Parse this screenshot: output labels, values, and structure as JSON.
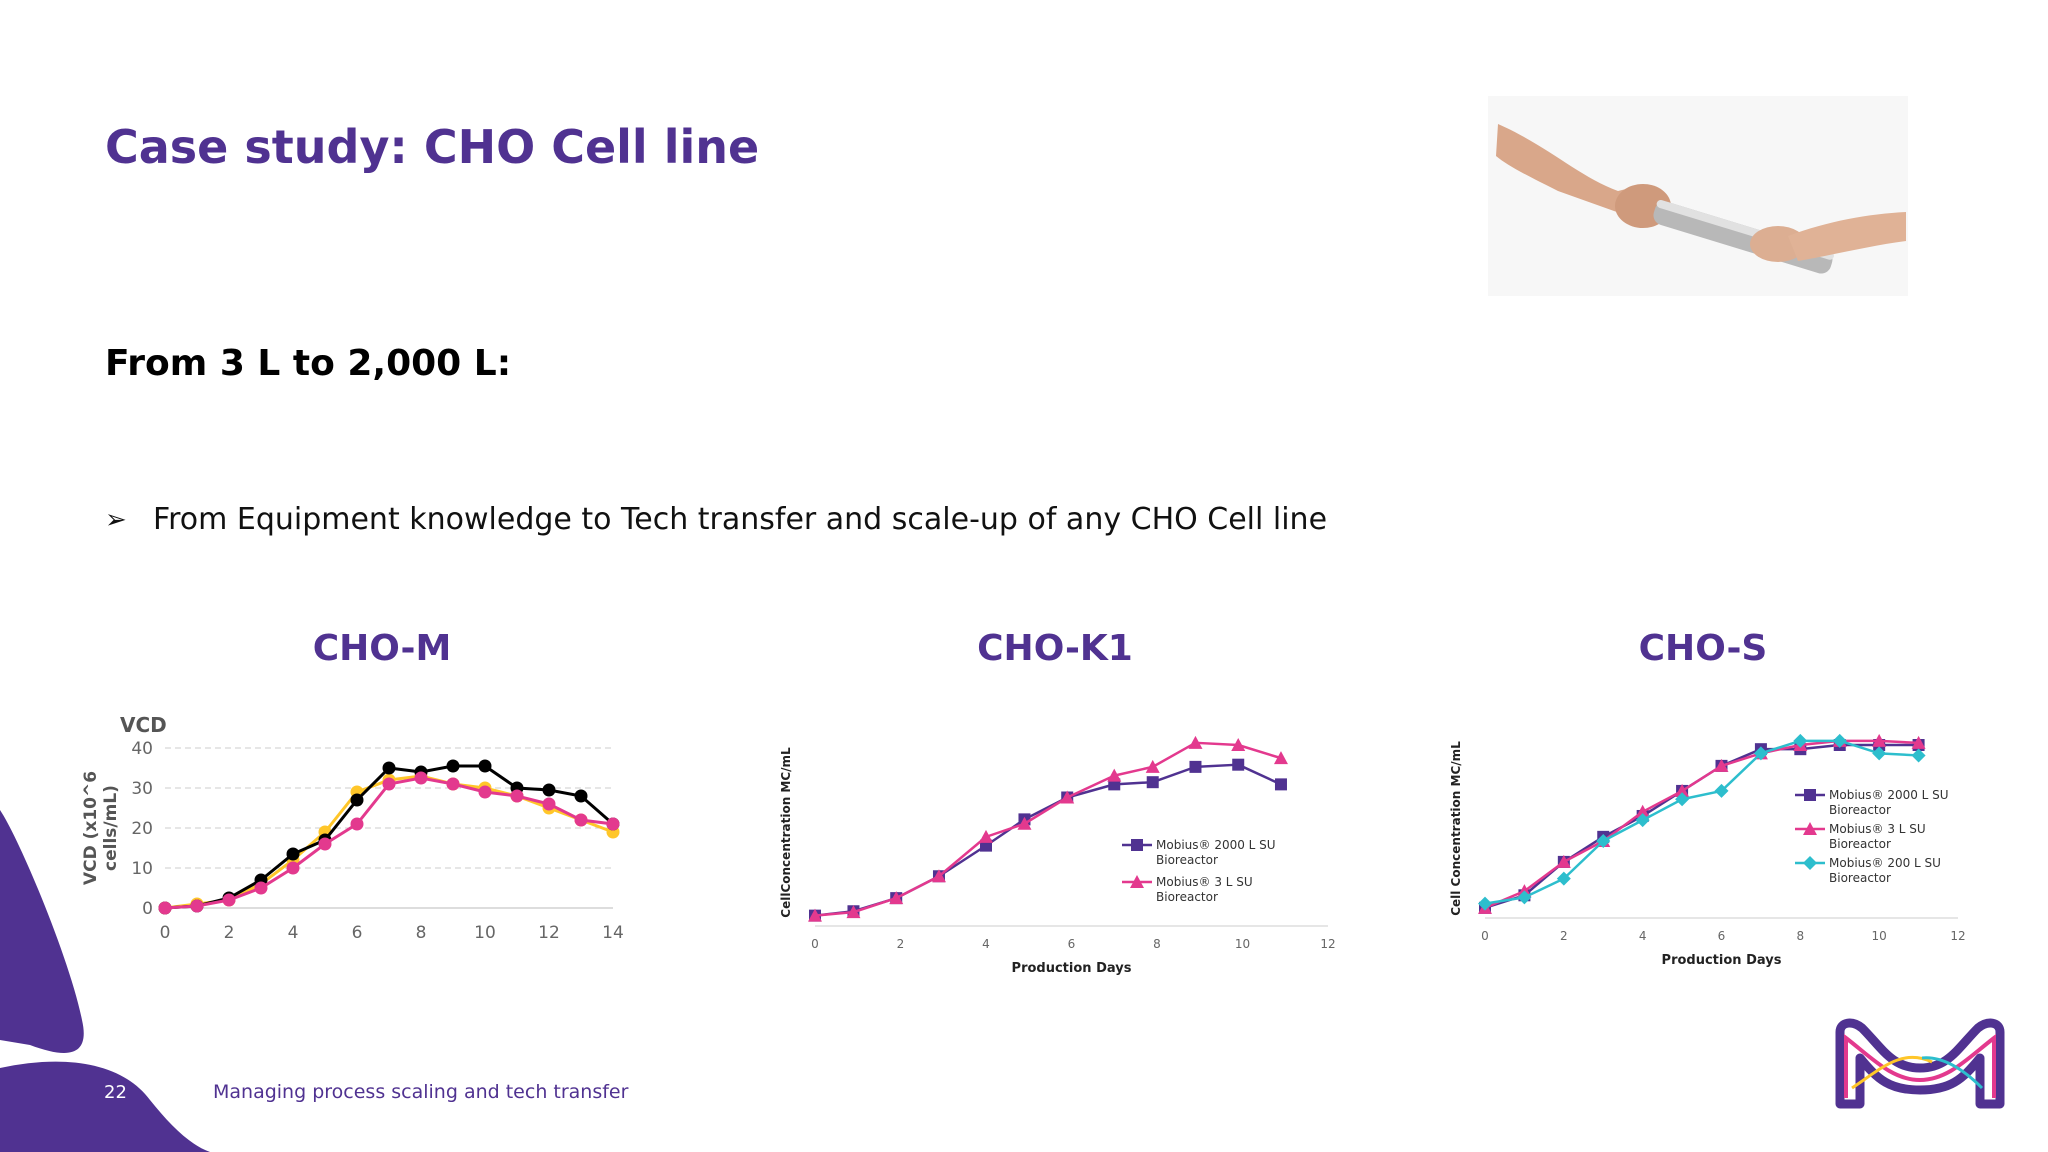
{
  "slide": {
    "title": "Case study: CHO Cell line",
    "subtitle": "From 3 L to 2,000 L:",
    "bullet_glyph": "➢",
    "bullet_text": "From Equipment knowledge to Tech transfer and scale-up of any CHO Cell line",
    "footer_page": "22",
    "footer_text": "Managing process scaling and tech transfer",
    "accent_color": "#503291",
    "icons": [
      "handshake-photo",
      "merck-logo-icon",
      "purple-blob-shape"
    ]
  },
  "chart_data": [
    {
      "type": "line",
      "title": "CHO-M",
      "plot_title": "VCD",
      "ylabel": "VCD (x10^6 cells/mL)",
      "xlabel": "",
      "xlim": [
        0,
        14
      ],
      "ylim": [
        0,
        40
      ],
      "xticks": [
        "0",
        "2",
        "4",
        "6",
        "8",
        "10",
        "12",
        "14"
      ],
      "yticks": [
        "0",
        "10",
        "20",
        "30",
        "40"
      ],
      "grid": "horizontal dashed",
      "legend": "none",
      "series": [
        {
          "color": "#FFC629",
          "x": [
            0,
            1,
            2,
            3,
            4,
            5,
            6,
            7,
            8,
            9,
            10,
            11,
            12,
            13,
            14
          ],
          "y": [
            0,
            1,
            2,
            6,
            12,
            19,
            29,
            32,
            33,
            31,
            30,
            28,
            25,
            22,
            19
          ]
        },
        {
          "color": "#000000",
          "x": [
            0,
            1,
            2,
            3,
            4,
            5,
            6,
            7,
            8,
            9,
            10,
            11,
            12,
            13,
            14
          ],
          "y": [
            0,
            0.5,
            2.5,
            7,
            13.5,
            17,
            27,
            35,
            34,
            35.5,
            35.5,
            30,
            29.5,
            28,
            21
          ]
        },
        {
          "color": "#E3398E",
          "x": [
            0,
            1,
            2,
            3,
            4,
            5,
            6,
            7,
            8,
            9,
            10,
            11,
            12,
            13,
            14
          ],
          "y": [
            0,
            0.5,
            2,
            5,
            10,
            16,
            21,
            31,
            32.5,
            31,
            29,
            28,
            26,
            22,
            21
          ]
        }
      ]
    },
    {
      "type": "line",
      "title": "CHO-K1",
      "xlabel": "Production Days",
      "ylabel": "CellConcentration MC/mL",
      "xlim": [
        0,
        12
      ],
      "ylim": [
        0,
        40
      ],
      "xticks": [
        "0",
        "2",
        "4",
        "6",
        "8",
        "10",
        "12"
      ],
      "yticks": [],
      "legend": "right-center",
      "series": [
        {
          "name": "Mobius® 2000 L SU Bioreactor",
          "color": "#503291",
          "marker": "square",
          "x": [
            0,
            0.9,
            1.9,
            2.9,
            4,
            4.9,
            5.9,
            7,
            7.9,
            8.9,
            9.9,
            10.9
          ],
          "y": [
            1,
            2,
            5,
            10,
            17,
            23,
            28,
            31,
            31.5,
            35,
            35.5,
            31
          ]
        },
        {
          "name": "Mobius® 3 L SU Bioreactor",
          "color": "#E3398E",
          "marker": "triangle",
          "x": [
            0,
            0.9,
            1.9,
            2.9,
            4,
            4.9,
            5.9,
            7,
            7.9,
            8.9,
            9.9,
            10.9
          ],
          "y": [
            1,
            1.8,
            5,
            10,
            19,
            22,
            28,
            33,
            35,
            40.5,
            40,
            37
          ]
        }
      ]
    },
    {
      "type": "line",
      "title": "CHO-S",
      "xlabel": "Production Days",
      "ylabel": "Cell Concentration MC/mL",
      "xlim": [
        0,
        12
      ],
      "ylim": [
        0,
        40
      ],
      "xticks": [
        "0",
        "2",
        "4",
        "6",
        "8",
        "10",
        "12"
      ],
      "yticks": [],
      "legend": "right",
      "series": [
        {
          "name": "Mobius® 2000 L SU Bioreactor",
          "color": "#503291",
          "marker": "square",
          "x": [
            0,
            1,
            2,
            3,
            4,
            5,
            6,
            7,
            8,
            9,
            10,
            11
          ],
          "y": [
            1,
            4,
            12,
            18,
            23,
            29,
            35,
            39,
            39,
            40,
            40,
            40
          ]
        },
        {
          "name": "Mobius® 3 L SU Bioreactor",
          "color": "#E3398E",
          "marker": "triangle",
          "x": [
            0,
            1,
            2,
            3,
            4,
            5,
            6,
            7,
            8,
            9,
            10,
            11
          ],
          "y": [
            1,
            5,
            12,
            17,
            24,
            29,
            35,
            38,
            40,
            41,
            41,
            40.5
          ]
        },
        {
          "name": "Mobius®  200 L SU Bioreactor",
          "color": "#2DBECD",
          "marker": "diamond",
          "x": [
            0,
            1,
            2,
            3,
            4,
            5,
            6,
            7,
            8,
            9,
            10,
            11
          ],
          "y": [
            2,
            3.5,
            8,
            17,
            22,
            27,
            29,
            38,
            41,
            41,
            38,
            37.5
          ]
        }
      ]
    }
  ]
}
